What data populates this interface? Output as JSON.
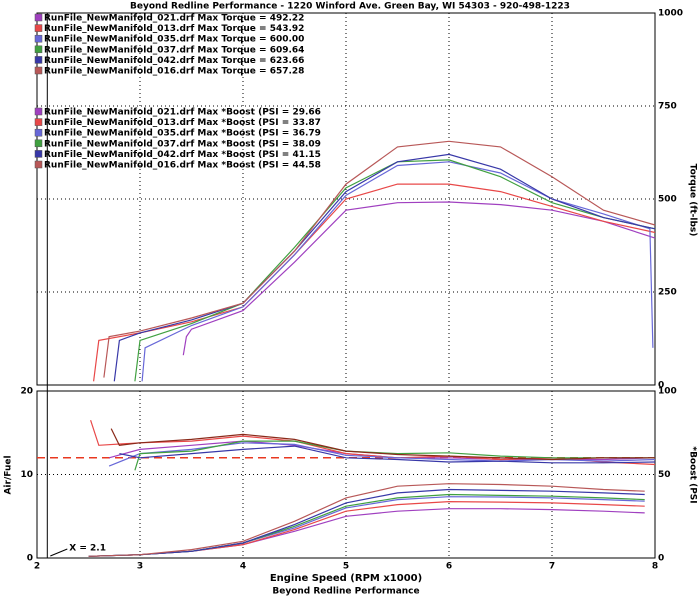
{
  "chart_data": [
    {
      "type": "line",
      "title": "Beyond Redline Performance - 1220 Winford Ave. Green Bay, WI 54303 - 920-498-1223",
      "y2label": "Torque (ft-lbs)",
      "xlim": [
        2,
        8
      ],
      "y2lim": [
        0,
        1000
      ],
      "y2ticks": [
        0,
        250,
        500,
        750,
        1000
      ],
      "grid": true,
      "cursor": {
        "value": 2.1,
        "label": "X = 2.1"
      },
      "series": [
        {
          "name": "RunFile_NewManifold_021.drf Max Torque = 492.22",
          "color": "#a040c0",
          "axis": "y2",
          "x": [
            3.42,
            3.45,
            3.5,
            4,
            4.5,
            5,
            5.5,
            6,
            6.5,
            7,
            7.5,
            8
          ],
          "values": [
            80,
            130,
            150,
            200,
            330,
            470,
            490,
            492,
            485,
            470,
            440,
            395
          ]
        },
        {
          "name": "RunFile_NewManifold_013.drf Max Torque = 543.92",
          "color": "#e84848",
          "axis": "y2",
          "x": [
            2.55,
            2.6,
            3,
            3.5,
            4,
            4.5,
            5,
            5.5,
            6,
            6.5,
            7,
            7.5,
            8
          ],
          "values": [
            10,
            120,
            140,
            170,
            210,
            350,
            500,
            540,
            540,
            520,
            480,
            440,
            410
          ]
        },
        {
          "name": "RunFile_NewManifold_035.drf Max Torque = 600.00",
          "color": "#6868d8",
          "axis": "y2",
          "x": [
            3.02,
            3.05,
            3.5,
            4,
            4.5,
            5,
            5.5,
            6,
            6.5,
            7,
            7.5,
            7.95,
            7.98
          ],
          "values": [
            10,
            100,
            160,
            210,
            350,
            510,
            590,
            600,
            570,
            500,
            460,
            420,
            100
          ]
        },
        {
          "name": "RunFile_NewManifold_037.drf Max Torque = 609.64",
          "color": "#40a040",
          "axis": "y2",
          "x": [
            2.95,
            3,
            3.5,
            4,
            4.5,
            5,
            5.5,
            6,
            6.5,
            7,
            7.5,
            8
          ],
          "values": [
            10,
            120,
            165,
            220,
            370,
            530,
            600,
            605,
            560,
            490,
            450,
            420
          ]
        },
        {
          "name": "RunFile_NewManifold_042.drf Max Torque = 623.66",
          "color": "#3838a8",
          "axis": "y2",
          "x": [
            2.75,
            2.8,
            3,
            3.5,
            4,
            4.5,
            5,
            5.5,
            6,
            6.5,
            7,
            7.5,
            8
          ],
          "values": [
            10,
            120,
            140,
            175,
            220,
            360,
            520,
            600,
            620,
            580,
            500,
            450,
            420
          ]
        },
        {
          "name": "RunFile_NewManifold_016.drf Max Torque = 657.28",
          "color": "#b85858",
          "axis": "y2",
          "x": [
            2.65,
            2.7,
            3,
            3.5,
            4,
            4.5,
            5,
            5.5,
            6,
            6.5,
            7,
            7.5,
            8
          ],
          "values": [
            20,
            130,
            145,
            180,
            220,
            360,
            540,
            640,
            655,
            640,
            560,
            470,
            430
          ]
        }
      ]
    },
    {
      "type": "line",
      "ylabel": "Air/Fuel",
      "y2label": "*Boost (PSI",
      "xlabel": "Engine Speed (RPM x1000)",
      "footer": "Beyond Redline Performance",
      "xlim": [
        2,
        8
      ],
      "xticks": [
        2,
        3,
        4,
        5,
        6,
        7,
        8
      ],
      "ylim": [
        0,
        20
      ],
      "yticks": [
        0,
        10,
        20
      ],
      "y2lim": [
        0,
        100
      ],
      "y2ticks": [
        0,
        50,
        100
      ],
      "grid": true,
      "hline": {
        "value": 12,
        "color": "#e83820"
      },
      "series": [
        {
          "color": "#a040c0",
          "x": [
            2.7,
            3,
            3.5,
            4,
            4.5,
            5,
            5.5,
            6,
            6.5,
            7,
            7.5,
            8
          ],
          "values": [
            12,
            13,
            13.5,
            14,
            13.5,
            12.5,
            12,
            12,
            11.8,
            11.8,
            11.8,
            12
          ]
        },
        {
          "color": "#e84848",
          "x": [
            2.52,
            2.6,
            3,
            3.5,
            4,
            4.5,
            5,
            5.5,
            6,
            6.5,
            7,
            7.5,
            8
          ],
          "values": [
            16.5,
            13.5,
            13.8,
            14,
            14.6,
            14,
            12.5,
            12,
            12.2,
            11.8,
            12,
            11.5,
            11.2
          ]
        },
        {
          "color": "#6868d8",
          "x": [
            2.7,
            3,
            3.5,
            4,
            4.5,
            5,
            5.5,
            6,
            6.5,
            7,
            7.5,
            8
          ],
          "values": [
            11,
            12.5,
            13,
            13.8,
            13.6,
            12.3,
            12,
            11.8,
            11.6,
            11.8,
            11.6,
            11.8
          ]
        },
        {
          "color": "#40a040",
          "x": [
            2.95,
            3,
            3.5,
            4,
            4.5,
            5,
            5.5,
            6,
            6.5,
            7,
            7.5,
            8
          ],
          "values": [
            10.5,
            12.5,
            12.8,
            14,
            14,
            12.8,
            12.5,
            12.6,
            12.2,
            12,
            12,
            12
          ]
        },
        {
          "color": "#3838a8",
          "x": [
            2.8,
            3,
            3.5,
            4,
            4.5,
            5,
            5.5,
            6,
            6.5,
            7,
            7.5,
            8
          ],
          "values": [
            12.5,
            12,
            12.5,
            13,
            13.4,
            12,
            11.8,
            11.5,
            11.6,
            11.4,
            11.4,
            11.5
          ]
        },
        {
          "color": "#8a2a1a",
          "x": [
            2.72,
            2.8,
            3,
            3.5,
            4,
            4.5,
            5,
            5.5,
            6,
            6.5,
            7,
            7.5,
            8
          ],
          "values": [
            15.5,
            13.5,
            13.8,
            14.2,
            14.8,
            14.2,
            12.8,
            12.4,
            12.2,
            12,
            11.8,
            12,
            12
          ]
        },
        {
          "name": "RunFile_NewManifold_021.drf Max *Boost (PSI = 29.66",
          "color": "#a040c0",
          "axis": "y2",
          "x": [
            2.5,
            3,
            3.5,
            4,
            4.5,
            5,
            5.5,
            6,
            6.5,
            7,
            7.5,
            7.9
          ],
          "values": [
            1,
            2,
            4,
            8,
            16,
            25,
            28,
            29.5,
            29.5,
            29,
            28,
            27
          ]
        },
        {
          "name": "RunFile_NewManifold_013.drf Max *Boost (PSI = 33.87",
          "color": "#e84848",
          "axis": "y2",
          "x": [
            2.5,
            3,
            3.5,
            4,
            4.5,
            5,
            5.5,
            6,
            6.5,
            7,
            7.5,
            7.9
          ],
          "values": [
            1,
            2,
            4,
            8,
            17,
            28,
            32,
            33.8,
            33.5,
            33,
            32,
            31
          ]
        },
        {
          "name": "RunFile_NewManifold_035.drf Max *Boost (PSI = 36.79",
          "color": "#6868d8",
          "axis": "y2",
          "x": [
            2.5,
            3,
            3.5,
            4,
            4.5,
            5,
            5.5,
            6,
            6.5,
            7,
            7.5,
            7.9
          ],
          "values": [
            1,
            2,
            4,
            9,
            18,
            30,
            35,
            36.7,
            36.5,
            36,
            35,
            34
          ]
        },
        {
          "name": "RunFile_NewManifold_037.drf Max *Boost (PSI = 38.09",
          "color": "#40a040",
          "axis": "y2",
          "x": [
            2.5,
            3,
            3.5,
            4,
            4.5,
            5,
            5.5,
            6,
            6.5,
            7,
            7.5,
            7.9
          ],
          "values": [
            1,
            2,
            4,
            9,
            19,
            31,
            36,
            38,
            37.5,
            37,
            36,
            35
          ]
        },
        {
          "name": "RunFile_NewManifold_042.drf Max *Boost (PSI = 41.15",
          "color": "#3838a8",
          "axis": "y2",
          "x": [
            2.5,
            3,
            3.5,
            4,
            4.5,
            5,
            5.5,
            6,
            6.5,
            7,
            7.5,
            7.9
          ],
          "values": [
            1,
            2,
            4,
            9,
            20,
            33,
            39,
            41,
            40.5,
            40,
            39,
            38
          ]
        },
        {
          "name": "RunFile_NewManifold_016.drf Max *Boost (PSI = 44.58",
          "color": "#b85858",
          "axis": "y2",
          "x": [
            2.5,
            3,
            3.5,
            4,
            4.5,
            5,
            5.5,
            6,
            6.5,
            7,
            7.5,
            7.9
          ],
          "values": [
            1,
            2,
            5,
            10,
            22,
            36,
            43,
            44.5,
            44,
            43,
            41,
            40
          ]
        }
      ]
    }
  ]
}
